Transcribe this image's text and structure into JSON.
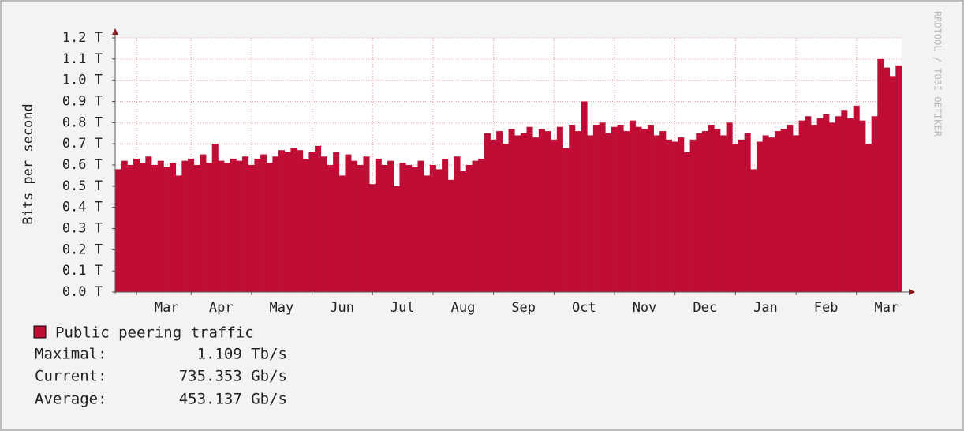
{
  "chart_data": {
    "type": "area",
    "y_label": "Bits per second",
    "watermark": "RRDTOOL / TOBI OETIKER",
    "categories": [
      null,
      null,
      null,
      null,
      null,
      null,
      null,
      null,
      "Mar",
      null,
      null,
      null,
      null,
      null,
      null,
      null,
      null,
      "Apr",
      null,
      null,
      null,
      null,
      null,
      null,
      null,
      null,
      null,
      "May",
      null,
      null,
      null,
      null,
      null,
      null,
      null,
      null,
      null,
      "Jun",
      null,
      null,
      null,
      null,
      null,
      null,
      null,
      null,
      null,
      "Jul",
      null,
      null,
      null,
      null,
      null,
      null,
      null,
      null,
      null,
      "Aug",
      null,
      null,
      null,
      null,
      null,
      null,
      null,
      null,
      null,
      "Sep",
      null,
      null,
      null,
      null,
      null,
      null,
      null,
      null,
      null,
      "Oct",
      null,
      null,
      null,
      null,
      null,
      null,
      null,
      null,
      null,
      "Nov",
      null,
      null,
      null,
      null,
      null,
      null,
      null,
      null,
      null,
      "Dec",
      null,
      null,
      null,
      null,
      null,
      null,
      null,
      null,
      null,
      "Jan",
      null,
      null,
      null,
      null,
      null,
      null,
      null,
      null,
      null,
      "Feb",
      null,
      null,
      null,
      null,
      null,
      null,
      null,
      null,
      null,
      "Mar",
      null,
      null
    ],
    "series": [
      {
        "name": "Public peering traffic",
        "color": "#c00d35",
        "values": [
          0.58,
          0.62,
          0.6,
          0.63,
          0.61,
          0.64,
          0.6,
          0.62,
          0.59,
          0.61,
          0.55,
          0.62,
          0.63,
          0.6,
          0.65,
          0.61,
          0.7,
          0.62,
          0.61,
          0.63,
          0.62,
          0.64,
          0.6,
          0.63,
          0.65,
          0.61,
          0.64,
          0.67,
          0.66,
          0.68,
          0.67,
          0.63,
          0.66,
          0.69,
          0.64,
          0.6,
          0.66,
          0.55,
          0.65,
          0.62,
          0.6,
          0.64,
          0.51,
          0.63,
          0.6,
          0.62,
          0.5,
          0.61,
          0.6,
          0.59,
          0.62,
          0.55,
          0.6,
          0.58,
          0.63,
          0.53,
          0.64,
          0.57,
          0.6,
          0.62,
          0.63,
          0.75,
          0.72,
          0.76,
          0.7,
          0.77,
          0.74,
          0.75,
          0.78,
          0.73,
          0.77,
          0.76,
          0.72,
          0.78,
          0.68,
          0.79,
          0.76,
          0.9,
          0.74,
          0.79,
          0.8,
          0.75,
          0.78,
          0.79,
          0.76,
          0.81,
          0.78,
          0.77,
          0.79,
          0.74,
          0.76,
          0.72,
          0.71,
          0.73,
          0.66,
          0.72,
          0.75,
          0.76,
          0.79,
          0.77,
          0.74,
          0.8,
          0.7,
          0.72,
          0.75,
          0.58,
          0.71,
          0.74,
          0.73,
          0.76,
          0.77,
          0.79,
          0.74,
          0.81,
          0.83,
          0.79,
          0.82,
          0.84,
          0.8,
          0.83,
          0.86,
          0.82,
          0.88,
          0.81,
          0.7,
          0.83,
          1.1,
          1.06,
          1.02,
          1.07
        ]
      }
    ],
    "ylim": [
      0,
      1.2
    ],
    "yticks": [
      {
        "value": 0,
        "label": "0.0 T"
      },
      {
        "value": 0.1,
        "label": "0.1 T"
      },
      {
        "value": 0.2,
        "label": "0.2 T"
      },
      {
        "value": 0.3,
        "label": "0.3 T"
      },
      {
        "value": 0.4,
        "label": "0.4 T"
      },
      {
        "value": 0.5,
        "label": "0.5 T"
      },
      {
        "value": 0.6,
        "label": "0.6 T"
      },
      {
        "value": 0.7,
        "label": "0.7 T"
      },
      {
        "value": 0.8,
        "label": "0.8 T"
      },
      {
        "value": 0.9,
        "label": "0.9 T"
      },
      {
        "value": 1.0,
        "label": "1.0 T"
      },
      {
        "value": 1.1,
        "label": "1.1 T"
      },
      {
        "value": 1.2,
        "label": "1.2 T"
      }
    ],
    "grid": true,
    "stats": [
      {
        "label": "Maximal:",
        "value": "1.109 Tb/s"
      },
      {
        "label": "Current:",
        "value": "735.353 Gb/s"
      },
      {
        "label": "Average:",
        "value": "453.137 Gb/s"
      }
    ]
  }
}
